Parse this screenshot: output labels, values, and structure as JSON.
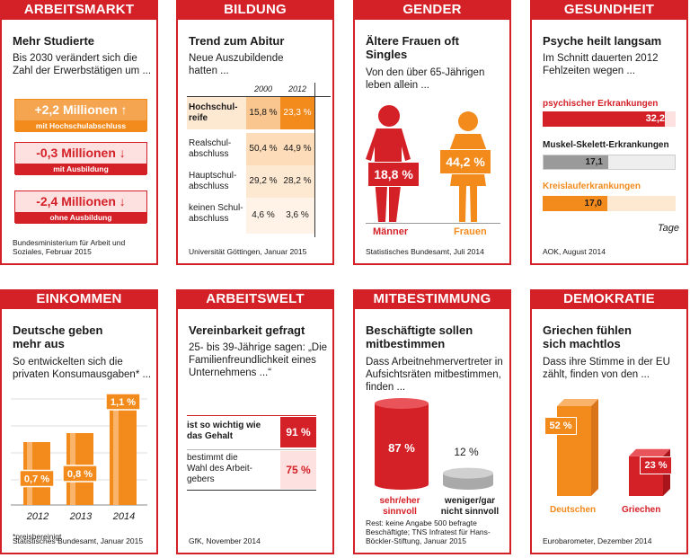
{
  "arbeitsmarkt": {
    "category": "ARBEITSMARKT",
    "title": "Mehr Studierte",
    "subtitle": "Bis 2030 verändert sich die Zahl der Erwerbstätigen um ...",
    "source": "Bundesministerium für Arbeit und Soziales, Februar 2015",
    "arrow_up": "↑",
    "arrow_down": "↓"
  },
  "bildung": {
    "category": "BILDUNG",
    "title": "Trend zum Abitur",
    "subtitle": "Neue Auszubildende hatten ...",
    "source": "Universität Göttingen, Januar 2015"
  },
  "gender": {
    "category": "GENDER",
    "title": "Ältere Frauen oft Singles",
    "subtitle": "Von den über 65-Jährigen leben allein ...",
    "source": "Statistisches Bundesamt, Juli 2014"
  },
  "gesundheit": {
    "category": "GESUNDHEIT",
    "title": "Psyche heilt langsam",
    "subtitle": "Im Schnitt dauerten 2012 Fehlzeiten wegen ...",
    "source": "AOK, August 2014",
    "unit": "Tage"
  },
  "einkommen": {
    "category": "EINKOMMEN",
    "title": "Deutsche geben mehr aus",
    "subtitle": "So entwickelten sich die privaten Konsumausgaben* ...",
    "footnote": "*preisbereinigt",
    "source": "Statistisches Bundesamt, Januar 2015"
  },
  "arbeitswelt": {
    "category": "ARBEITSWELT",
    "title": "Vereinbarkeit gefragt",
    "subtitle": "25- bis 39-Jährige sagen: „Die Familienfreundlichkeit eines Unternehmens ...“",
    "source": "GfK, November 2014"
  },
  "mitbestimmung": {
    "category": "MITBESTIMMUNG",
    "title": "Beschäftigte sollen mitbestimmen",
    "subtitle": "Dass Arbeitnehmervertreter in Aufsichtsräten mitbestimmen, finden ...",
    "source": "Rest: keine Angabe 500 befragte Beschäftigte; TNS Infratest für Hans-Böckler-Stiftung, Januar 2015"
  },
  "demokratie": {
    "category": "DEMOKRATIE",
    "title": "Griechen fühlen sich machtlos",
    "subtitle": "Dass ihre Stimme in der EU zählt, finden von den ...",
    "source": "Eurobarometer, Dezember 2014"
  },
  "chart_data": [
    {
      "type": "bar",
      "panel": "ARBEITSMARKT",
      "categories": [
        "mit Hochschulabschluss",
        "mit Ausbildung",
        "ohne Ausbildung"
      ],
      "values": [
        2.2,
        -0.3,
        -2.4
      ],
      "labels": [
        "+2,2 Millionen",
        "-0,3 Millionen",
        "-2,4 Millionen"
      ]
    },
    {
      "type": "table",
      "panel": "BILDUNG",
      "columns": [
        "2000",
        "2012"
      ],
      "rows": [
        {
          "label": "Hochschulreife",
          "values": [
            15.8,
            23.3
          ],
          "texts": [
            "15,8 %",
            "23,3 %"
          ]
        },
        {
          "label": "Realschulabschluss",
          "values": [
            50.4,
            44.9
          ],
          "texts": [
            "50,4 %",
            "44,9 %"
          ]
        },
        {
          "label": "Hauptschulabschluss",
          "values": [
            29.2,
            28.2
          ],
          "texts": [
            "29,2 %",
            "28,2 %"
          ]
        },
        {
          "label": "keinen Schulabschluss",
          "values": [
            4.6,
            3.6
          ],
          "texts": [
            "4,6 %",
            "3,6 %"
          ]
        }
      ],
      "row_labels_display": [
        [
          "Hochschul-",
          "reife"
        ],
        [
          "Realschul-",
          "abschluss"
        ],
        [
          "Hauptschul-",
          "abschluss"
        ],
        [
          "keinen Schul-",
          "abschluss"
        ]
      ]
    },
    {
      "type": "bar",
      "panel": "GENDER",
      "categories": [
        "Männer",
        "Frauen"
      ],
      "values": [
        18.8,
        44.2
      ],
      "labels": [
        "18,8 %",
        "44,2 %"
      ]
    },
    {
      "type": "bar",
      "panel": "GESUNDHEIT",
      "categories": [
        "psychischer Erkrankungen",
        "Muskel-Skelett-Erkrankungen",
        "Kreislauferkrankungen"
      ],
      "values": [
        32.2,
        17.1,
        17.0
      ],
      "labels": [
        "32,2",
        "17,1",
        "17,0"
      ],
      "xlim": [
        0,
        35
      ]
    },
    {
      "type": "bar",
      "panel": "EINKOMMEN",
      "categories": [
        "2012",
        "2013",
        "2014"
      ],
      "values": [
        0.7,
        0.8,
        1.1
      ],
      "labels": [
        "0,7 %",
        "0,8 %",
        "1,1 %"
      ]
    },
    {
      "type": "bar",
      "panel": "ARBEITSWELT",
      "categories": [
        "ist so wichtig wie das Gehalt",
        "bestimmt die Wahl des Arbeitgebers"
      ],
      "category_lines": [
        [
          "ist so wichtig wie",
          "das Gehalt"
        ],
        [
          "bestimmt die",
          "Wahl des Arbeit-",
          "gebers"
        ]
      ],
      "values": [
        91,
        75
      ],
      "labels": [
        "91 %",
        "75 %"
      ]
    },
    {
      "type": "bar",
      "panel": "MITBESTIMMUNG",
      "categories": [
        "sehr/eher sinnvoll",
        "weniger/gar nicht sinnvoll"
      ],
      "category_lines": [
        [
          "sehr/eher",
          "sinnvoll"
        ],
        [
          "weniger/gar",
          "nicht sinnvoll"
        ]
      ],
      "values": [
        87,
        12
      ],
      "labels": [
        "87 %",
        "12 %"
      ]
    },
    {
      "type": "bar",
      "panel": "DEMOKRATIE",
      "categories": [
        "Deutschen",
        "Griechen"
      ],
      "values": [
        52,
        23
      ],
      "labels": [
        "52 %",
        "23 %"
      ]
    }
  ],
  "colors": {
    "red": "#d42027",
    "orange": "#f28a1c",
    "light_orange": "#fbd7ad",
    "grey": "#9a9a9a"
  }
}
